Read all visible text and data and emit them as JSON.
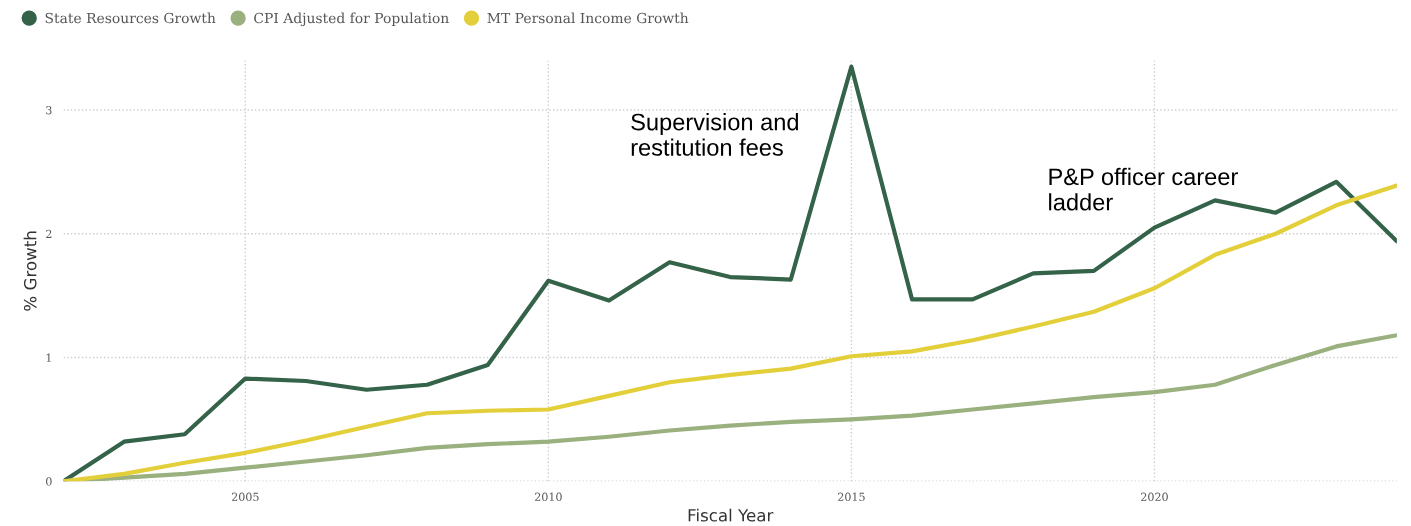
{
  "chart_data": {
    "type": "line",
    "xlabel": "Fiscal Year",
    "ylabel": "% Growth",
    "x": [
      2002,
      2003,
      2004,
      2005,
      2006,
      2007,
      2008,
      2009,
      2010,
      2011,
      2012,
      2013,
      2014,
      2015,
      2016,
      2017,
      2018,
      2019,
      2020,
      2021,
      2022,
      2023,
      2024
    ],
    "series": [
      {
        "name": "State Resources Growth",
        "color": "#34634a",
        "values": [
          0,
          0.32,
          0.38,
          0.83,
          0.81,
          0.74,
          0.78,
          0.94,
          1.62,
          1.46,
          1.77,
          1.65,
          1.63,
          3.35,
          1.47,
          1.47,
          1.68,
          1.7,
          2.05,
          2.27,
          2.17,
          2.42,
          1.94
        ]
      },
      {
        "name": "CPI Adjusted for Population",
        "color": "#9bb07f",
        "values": [
          0,
          0.03,
          0.06,
          0.11,
          0.16,
          0.21,
          0.27,
          0.3,
          0.32,
          0.36,
          0.41,
          0.45,
          0.48,
          0.5,
          0.53,
          0.58,
          0.63,
          0.68,
          0.72,
          0.78,
          0.94,
          1.09,
          1.18
        ]
      },
      {
        "name": "MT Personal Income Growth",
        "color": "#e3cf3a",
        "values": [
          0,
          0.06,
          0.15,
          0.23,
          0.33,
          0.44,
          0.55,
          0.57,
          0.58,
          0.69,
          0.8,
          0.86,
          0.91,
          1.01,
          1.05,
          1.14,
          1.25,
          1.37,
          1.56,
          1.83,
          2.0,
          2.23,
          2.39
        ]
      }
    ],
    "xlim": [
      2002,
      2024
    ],
    "ylim": [
      0,
      3.4
    ],
    "xticks": [
      2005,
      2010,
      2015,
      2020
    ],
    "yticks": [
      0,
      1,
      2,
      3
    ],
    "grid": true,
    "legend": "top left",
    "marker": "none",
    "line_style": "solid",
    "annotations": [
      "Supervision and\nrestitution fees",
      "P&P officer career\nladder"
    ]
  }
}
